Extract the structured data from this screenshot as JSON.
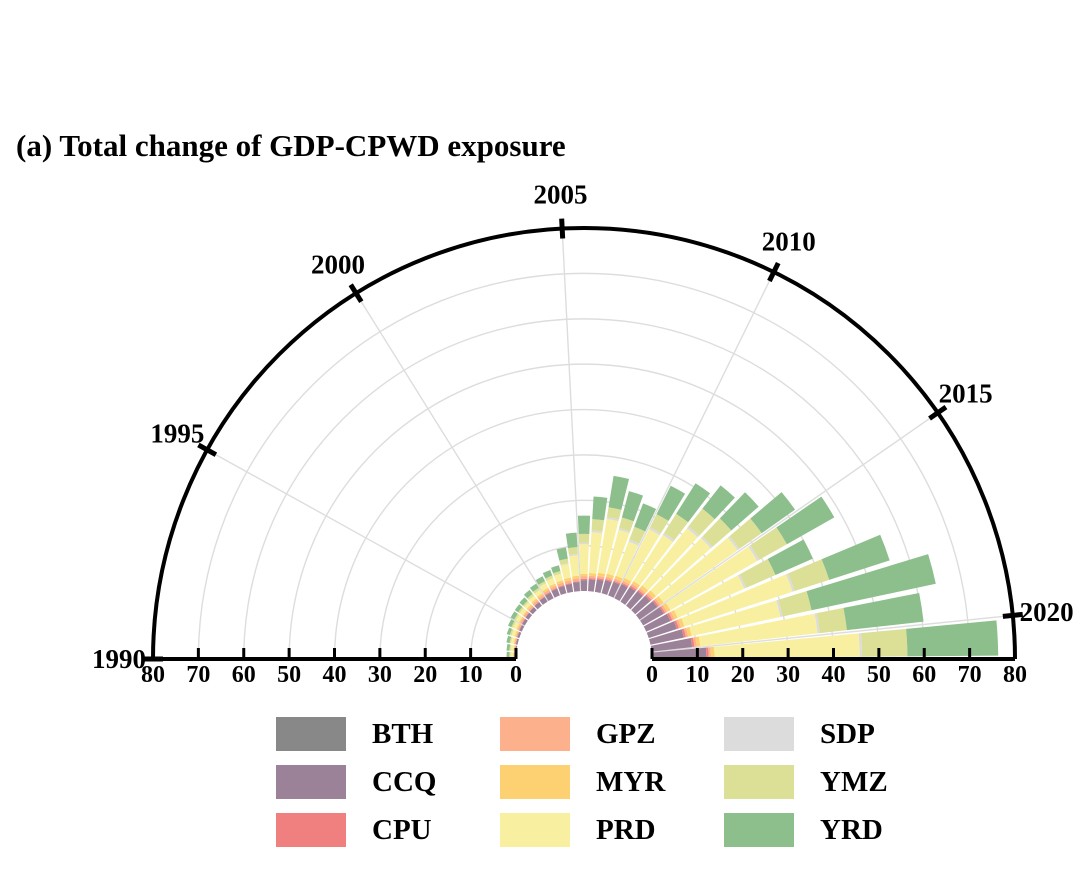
{
  "chart_data": {
    "type": "polar-stacked-bar",
    "title": "(a) Total change of GDP-CPWD exposure",
    "year_ticks": [
      "1990",
      "1995",
      "2000",
      "2005",
      "2010",
      "2015",
      "2020"
    ],
    "radial_ticks": [
      "80",
      "70",
      "60",
      "50",
      "40",
      "30",
      "20",
      "10",
      "0"
    ],
    "radial_ticks_right": [
      "0",
      "10",
      "20",
      "30",
      "40",
      "50",
      "60",
      "70",
      "80"
    ],
    "rlim": [
      0,
      80
    ],
    "year_range": [
      1990,
      2021
    ],
    "regions": [
      {
        "name": "BTH",
        "color": "#888888"
      },
      {
        "name": "CCQ",
        "color": "#9b8298"
      },
      {
        "name": "CPU",
        "color": "#f08080"
      },
      {
        "name": "GPZ",
        "color": "#fdb08c"
      },
      {
        "name": "MYR",
        "color": "#fdd172"
      },
      {
        "name": "PRD",
        "color": "#f8f0a0"
      },
      {
        "name": "SDP",
        "color": "#dcdcdc"
      },
      {
        "name": "YMZ",
        "color": "#dce096"
      },
      {
        "name": "YRD",
        "color": "#8cbf8c"
      }
    ],
    "years": [
      1991,
      1992,
      1993,
      1994,
      1995,
      1996,
      1997,
      1998,
      1999,
      2000,
      2001,
      2002,
      2003,
      2004,
      2005,
      2006,
      2007,
      2008,
      2009,
      2010,
      2011,
      2012,
      2013,
      2014,
      2015,
      2016,
      2017,
      2018,
      2019,
      2020,
      2021
    ],
    "series": [
      {
        "name": "BTH",
        "values": [
          0,
          0,
          0,
          0,
          0,
          0,
          0,
          0,
          0,
          0,
          0,
          0,
          0,
          0,
          0,
          0,
          0,
          0,
          0,
          0,
          0,
          0,
          0,
          0,
          0,
          0,
          0,
          0,
          0,
          0,
          0
        ]
      },
      {
        "name": "CCQ",
        "values": [
          0.3,
          0.3,
          0.4,
          0.5,
          0.6,
          0.7,
          0.8,
          0.9,
          1.0,
          1.2,
          1.4,
          1.6,
          1.7,
          1.8,
          2.0,
          2.4,
          2.6,
          2.8,
          3.0,
          3.2,
          3.5,
          3.8,
          4.0,
          4.4,
          4.8,
          5.2,
          5.8,
          6.5,
          7.5,
          9.0,
          12.0
        ]
      },
      {
        "name": "CPU",
        "values": [
          0,
          0,
          0,
          0,
          0.1,
          0.1,
          0.1,
          0.1,
          0.1,
          0.1,
          0.2,
          0.2,
          0.2,
          0.2,
          0.2,
          0.3,
          0.3,
          0.3,
          0.3,
          0.3,
          0.3,
          0.4,
          0.4,
          0.4,
          0.4,
          0.4,
          0.5,
          0.5,
          0.5,
          0.5,
          0.5
        ]
      },
      {
        "name": "GPZ",
        "values": [
          0.2,
          0.2,
          0.3,
          0.3,
          0.3,
          0.4,
          0.4,
          0.4,
          0.5,
          0.5,
          0.5,
          0.5,
          0.6,
          0.6,
          0.6,
          0.5,
          0.5,
          0.5,
          0.5,
          0.5,
          0.5,
          0.5,
          0.5,
          0.5,
          0.5,
          0.5,
          0.5,
          0.5,
          0.5,
          0.5,
          0.5
        ]
      },
      {
        "name": "MYR",
        "values": [
          0.2,
          0.2,
          0.2,
          0.3,
          0.3,
          0.3,
          0.3,
          0.4,
          0.4,
          0.4,
          0.5,
          0.5,
          0.5,
          0.6,
          0.6,
          0.6,
          0.6,
          0.7,
          0.7,
          0.7,
          0.7,
          0.7,
          0.8,
          0.8,
          0.8,
          0.8,
          0.8,
          0.8,
          0.8,
          0.8,
          0.8
        ]
      },
      {
        "name": "PRD",
        "values": [
          0.5,
          0.6,
          0.6,
          0.7,
          0.8,
          0.8,
          0.8,
          0.7,
          0.8,
          0.9,
          1.1,
          1.3,
          1.5,
          3.0,
          4.5,
          6.5,
          9.0,
          12.0,
          10.0,
          8.0,
          12.0,
          12.0,
          16.0,
          16.0,
          20.0,
          22.0,
          16.0,
          25.0,
          20.0,
          26.0,
          32.0
        ]
      },
      {
        "name": "SDP",
        "values": [
          0,
          0,
          0,
          0,
          0,
          0,
          0,
          0,
          0,
          0,
          0,
          0,
          0,
          0.2,
          0.3,
          0.3,
          0.4,
          0.4,
          0.4,
          0.5,
          0.5,
          0.5,
          0.5,
          0.5,
          0.5,
          0.5,
          0.5,
          0.5,
          0.5,
          0.5,
          0.5
        ]
      },
      {
        "name": "YMZ",
        "values": [
          0.3,
          0.3,
          0.3,
          0.4,
          0.4,
          0.4,
          0.4,
          0.4,
          0.5,
          0.5,
          0.5,
          0.6,
          0.6,
          1.0,
          1.5,
          2.0,
          2.5,
          2.2,
          2.4,
          3.0,
          3.2,
          5.0,
          5.0,
          5.5,
          6.0,
          7.0,
          7.0,
          8.0,
          6.5,
          6.0,
          10.0
        ]
      },
      {
        "name": "YRD",
        "values": [
          0.6,
          0.6,
          0.7,
          0.7,
          0.8,
          0.9,
          0.9,
          1.0,
          1.1,
          1.1,
          1.2,
          1.3,
          1.3,
          2.5,
          3.2,
          4.0,
          5.0,
          7.0,
          6.0,
          5.5,
          7.0,
          8.0,
          6.5,
          8.0,
          9.0,
          12.0,
          9.0,
          14.0,
          28.0,
          17.0,
          20.0
        ]
      }
    ]
  }
}
